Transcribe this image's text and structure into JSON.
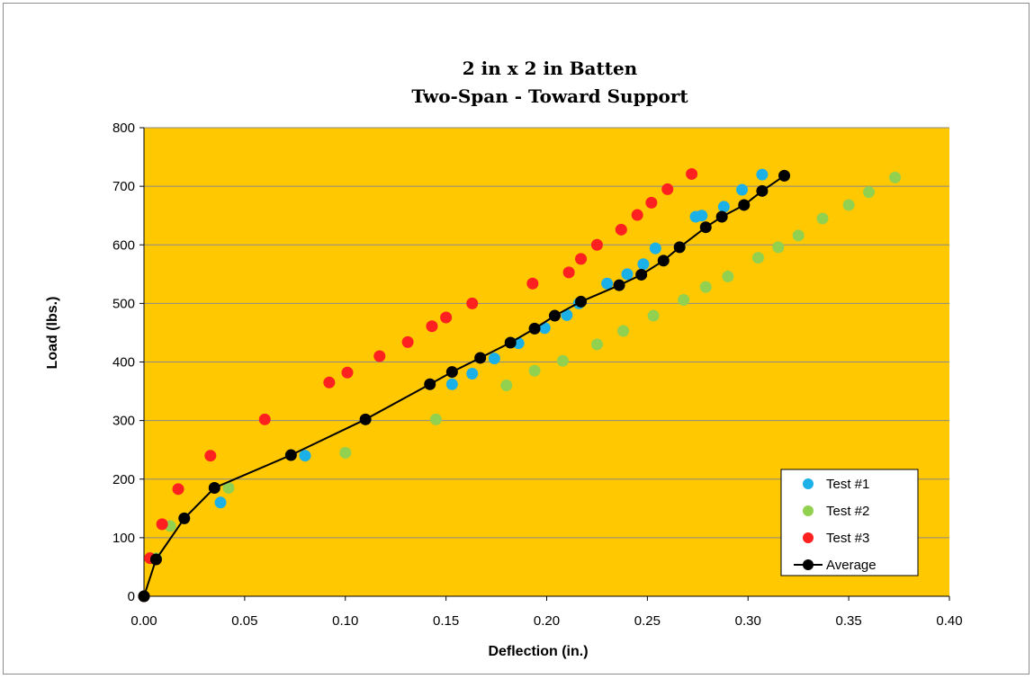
{
  "chart_data": {
    "type": "scatter",
    "title": [
      "2 in x 2 in Batten",
      "Two-Span  - Toward  Support"
    ],
    "xlabel": "Deflection (in.)",
    "ylabel": "Load (lbs.)",
    "xlim": [
      0,
      0.4
    ],
    "ylim": [
      0,
      800
    ],
    "xticks": [
      "0.00",
      "0.05",
      "0.10",
      "0.15",
      "0.20",
      "0.25",
      "0.30",
      "0.35",
      "0.40"
    ],
    "yticks": [
      "0",
      "100",
      "200",
      "300",
      "400",
      "500",
      "600",
      "700",
      "800"
    ],
    "grid": "horizontal",
    "plot_background": "#FFC800",
    "legend_position": "bottom-right",
    "series": [
      {
        "name": "Test #1",
        "color": "#1CB0E8",
        "line": false,
        "points": [
          [
            0,
            0
          ],
          [
            0.038,
            160
          ],
          [
            0.08,
            240
          ],
          [
            0.153,
            362
          ],
          [
            0.163,
            380
          ],
          [
            0.174,
            406
          ],
          [
            0.186,
            432
          ],
          [
            0.199,
            458
          ],
          [
            0.21,
            480
          ],
          [
            0.216,
            500
          ],
          [
            0.23,
            534
          ],
          [
            0.24,
            550
          ],
          [
            0.248,
            567
          ],
          [
            0.254,
            594
          ],
          [
            0.274,
            648
          ],
          [
            0.277,
            650
          ],
          [
            0.288,
            665
          ],
          [
            0.297,
            694
          ],
          [
            0.307,
            720
          ]
        ]
      },
      {
        "name": "Test #2",
        "color": "#92D050",
        "line": false,
        "points": [
          [
            0,
            0
          ],
          [
            0.006,
            65
          ],
          [
            0.013,
            120
          ],
          [
            0.042,
            185
          ],
          [
            0.1,
            245
          ],
          [
            0.145,
            302
          ],
          [
            0.18,
            360
          ],
          [
            0.194,
            385
          ],
          [
            0.208,
            402
          ],
          [
            0.225,
            430
          ],
          [
            0.238,
            453
          ],
          [
            0.253,
            479
          ],
          [
            0.268,
            506
          ],
          [
            0.279,
            528
          ],
          [
            0.29,
            546
          ],
          [
            0.305,
            578
          ],
          [
            0.315,
            596
          ],
          [
            0.325,
            616
          ],
          [
            0.337,
            645
          ],
          [
            0.35,
            668
          ],
          [
            0.36,
            690
          ],
          [
            0.373,
            715
          ]
        ]
      },
      {
        "name": "Test #3",
        "color": "#FF2020",
        "line": false,
        "points": [
          [
            0,
            0
          ],
          [
            0.003,
            65
          ],
          [
            0.009,
            123
          ],
          [
            0.017,
            183
          ],
          [
            0.033,
            240
          ],
          [
            0.06,
            302
          ],
          [
            0.092,
            365
          ],
          [
            0.101,
            382
          ],
          [
            0.117,
            410
          ],
          [
            0.131,
            434
          ],
          [
            0.143,
            461
          ],
          [
            0.15,
            476
          ],
          [
            0.163,
            500
          ],
          [
            0.193,
            534
          ],
          [
            0.211,
            553
          ],
          [
            0.217,
            576
          ],
          [
            0.225,
            600
          ],
          [
            0.237,
            626
          ],
          [
            0.245,
            651
          ],
          [
            0.252,
            672
          ],
          [
            0.26,
            695
          ],
          [
            0.272,
            721
          ]
        ]
      },
      {
        "name": "Average",
        "color": "#000000",
        "line": true,
        "points": [
          [
            0,
            0
          ],
          [
            0.006,
            63
          ],
          [
            0.02,
            133
          ],
          [
            0.035,
            185
          ],
          [
            0.073,
            241
          ],
          [
            0.11,
            302
          ],
          [
            0.142,
            362
          ],
          [
            0.153,
            383
          ],
          [
            0.167,
            407
          ],
          [
            0.182,
            433
          ],
          [
            0.194,
            457
          ],
          [
            0.204,
            479
          ],
          [
            0.217,
            503
          ],
          [
            0.236,
            531
          ],
          [
            0.247,
            549
          ],
          [
            0.258,
            573
          ],
          [
            0.266,
            596
          ],
          [
            0.279,
            630
          ],
          [
            0.287,
            648
          ],
          [
            0.298,
            668
          ],
          [
            0.307,
            692
          ],
          [
            0.318,
            718
          ]
        ]
      }
    ]
  }
}
